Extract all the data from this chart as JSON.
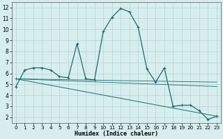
{
  "xlabel": "Humidex (Indice chaleur)",
  "bg_color": "#d8eeee",
  "grid_color": "#b8d8d8",
  "line_color": "#1a6b6b",
  "xlim": [
    -0.5,
    23.5
  ],
  "ylim": [
    1.5,
    12.5
  ],
  "xticks": [
    0,
    1,
    2,
    3,
    4,
    5,
    6,
    7,
    8,
    9,
    10,
    11,
    12,
    13,
    14,
    15,
    16,
    17,
    18,
    19,
    20,
    21,
    22,
    23
  ],
  "yticks": [
    2,
    3,
    4,
    5,
    6,
    7,
    8,
    9,
    10,
    11,
    12
  ],
  "curve1": [
    [
      0,
      4.8
    ],
    [
      1,
      6.3
    ],
    [
      2,
      6.5
    ],
    [
      3,
      6.5
    ],
    [
      4,
      6.3
    ],
    [
      5,
      5.7
    ],
    [
      6,
      5.6
    ],
    [
      7,
      8.7
    ],
    [
      8,
      5.5
    ],
    [
      9,
      5.4
    ],
    [
      10,
      9.8
    ],
    [
      11,
      11.1
    ],
    [
      12,
      11.9
    ],
    [
      13,
      11.6
    ],
    [
      14,
      10.2
    ],
    [
      15,
      6.4
    ],
    [
      16,
      5.2
    ],
    [
      17,
      6.5
    ],
    [
      18,
      3.0
    ],
    [
      19,
      3.1
    ],
    [
      20,
      3.1
    ],
    [
      21,
      2.6
    ],
    [
      22,
      1.8
    ],
    [
      23,
      2.1
    ]
  ],
  "line_diagonal": [
    [
      0,
      5.5
    ],
    [
      23,
      2.1
    ]
  ],
  "line_flat": [
    [
      0,
      5.5
    ],
    [
      23,
      5.2
    ]
  ],
  "line_flat2": [
    [
      0,
      5.5
    ],
    [
      23,
      4.8
    ]
  ]
}
